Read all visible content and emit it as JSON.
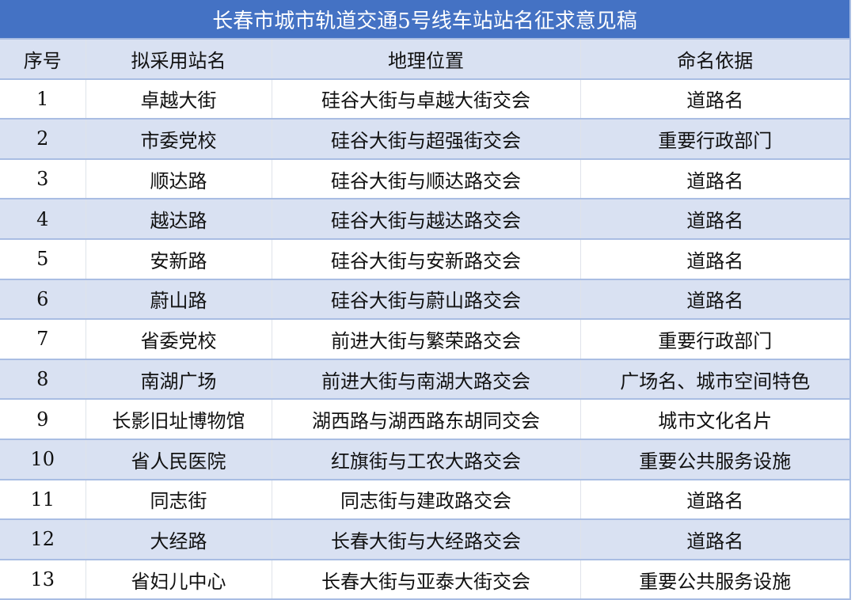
{
  "title": "长春市城市轨道交通5号线车站站名征求意见稿",
  "colors": {
    "title_bg": "#4472c4",
    "stripe": "#d9e1f2"
  },
  "columns": [
    "序号",
    "拟采用站名",
    "地理位置",
    "命名依据"
  ],
  "rows": [
    [
      "1",
      "卓越大街",
      "硅谷大街与卓越大街交会",
      "道路名"
    ],
    [
      "2",
      "市委党校",
      "硅谷大街与超强街交会",
      "重要行政部门"
    ],
    [
      "3",
      "顺达路",
      "硅谷大街与顺达路交会",
      "道路名"
    ],
    [
      "4",
      "越达路",
      "硅谷大街与越达路交会",
      "道路名"
    ],
    [
      "5",
      "安新路",
      "硅谷大街与安新路交会",
      "道路名"
    ],
    [
      "6",
      "蔚山路",
      "硅谷大街与蔚山路交会",
      "道路名"
    ],
    [
      "7",
      "省委党校",
      "前进大街与繁荣路交会",
      "重要行政部门"
    ],
    [
      "8",
      "南湖广场",
      "前进大街与南湖大路交会",
      "广场名、城市空间特色"
    ],
    [
      "9",
      "长影旧址博物馆",
      "湖西路与湖西路东胡同交会",
      "城市文化名片"
    ],
    [
      "10",
      "省人民医院",
      "红旗街与工农大路交会",
      "重要公共服务设施"
    ],
    [
      "11",
      "同志街",
      "同志街与建政路交会",
      "道路名"
    ],
    [
      "12",
      "大经路",
      "长春大街与大经路交会",
      "道路名"
    ],
    [
      "13",
      "省妇儿中心",
      "长春大街与亚泰大街交会",
      "重要公共服务设施"
    ]
  ]
}
